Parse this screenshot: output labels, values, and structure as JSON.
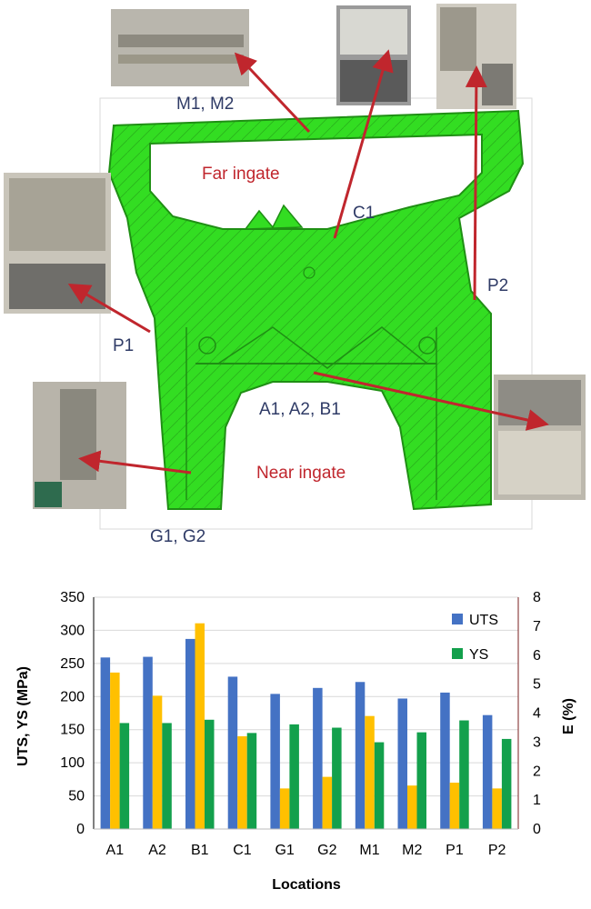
{
  "diagram": {
    "zones": {
      "far": "Far ingate",
      "near": "Near ingate"
    },
    "locations": [
      "M1, M2",
      "C1",
      "P2",
      "P1",
      "A1, A2, B1",
      "G1, G2"
    ],
    "colors": {
      "part": "#33dd22",
      "part_dark": "#1f8f14",
      "arrow": "#c0262d",
      "label": "#2f3b66"
    }
  },
  "chart_data": {
    "type": "bar",
    "categories": [
      "A1",
      "A2",
      "B1",
      "C1",
      "G1",
      "G2",
      "M1",
      "M2",
      "P1",
      "P2"
    ],
    "series": [
      {
        "name": "UTS",
        "axis": "left",
        "color": "#4472c4",
        "values": [
          259,
          260,
          287,
          230,
          204,
          213,
          222,
          197,
          206,
          172
        ]
      },
      {
        "name": "",
        "axis": "right",
        "color": "#ffc000",
        "values": [
          5.4,
          4.6,
          7.1,
          3.2,
          1.4,
          1.8,
          3.9,
          1.5,
          1.6,
          1.4
        ]
      },
      {
        "name": "YS",
        "axis": "left",
        "color": "#13a04c",
        "values": [
          160,
          160,
          165,
          145,
          158,
          153,
          131,
          146,
          164,
          136
        ]
      }
    ],
    "xlabel": "Locations",
    "ylabel": "UTS, YS (MPa)",
    "y2label": "E (%)",
    "ylim": [
      0,
      350
    ],
    "yticks": [
      "0",
      "50",
      "100",
      "150",
      "200",
      "250",
      "300",
      "350"
    ],
    "y2lim": [
      0,
      8
    ],
    "y2ticks": [
      "0",
      "1",
      "2",
      "3",
      "4",
      "5",
      "6",
      "7",
      "8"
    ],
    "legend": [
      "UTS",
      "YS"
    ],
    "legend_position": "top-right",
    "grid": true
  }
}
